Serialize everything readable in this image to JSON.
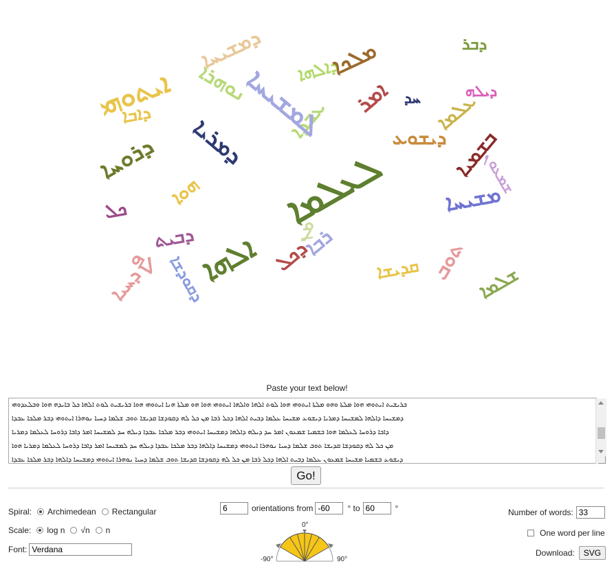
{
  "cloud": {
    "words": [
      {
        "text": "ܐܝܬܘܗܝ",
        "color": "#e8c44a"
      },
      {
        "text": "ܕܡܫܝܚܐ",
        "color": "#e8c89a"
      },
      {
        "text": "ܕܐܠܗܐ",
        "color": "#b2d96b"
      },
      {
        "text": "ܕܒܪ",
        "color": "#7a9a3d"
      },
      {
        "text": "ܡܠܟܐ",
        "color": "#9c6a2c"
      },
      {
        "text": "ܥܒܕܐ",
        "color": "#b8d97a"
      },
      {
        "text": "ܕܝܠܗ",
        "color": "#d95fb8"
      },
      {
        "text": "ܚܕ",
        "color": "#2f3a73"
      },
      {
        "text": "ܠܡܫܝܚܐ",
        "color": "#a3a7e0"
      },
      {
        "text": "ܐܡܪ",
        "color": "#b34b4b"
      },
      {
        "text": "ܕܐܒܐ",
        "color": "#e8c44a"
      },
      {
        "text": "ܕܪܘܚܐ",
        "color": "#6e7a2c"
      },
      {
        "text": "ܠܥܠܡܐ",
        "color": "#5e7f2f"
      },
      {
        "text": "ܕܡܪܝܐ",
        "color": "#2f3a73"
      },
      {
        "text": "ܗܘܐ",
        "color": "#e8c44a"
      },
      {
        "text": "ܕܝܫܘܥ",
        "color": "#c88a3d"
      },
      {
        "text": "ܒܫܡܝܐ",
        "color": "#8b2a2a"
      },
      {
        "text": "ܡܫܝܚܐ",
        "color": "#6f73d1"
      },
      {
        "text": "ܫܡܥܘܢ",
        "color": "#c9a0d8"
      },
      {
        "text": "ܥܠܡܐ",
        "color": "#c9b44a"
      },
      {
        "text": "ܕܒܝܬ",
        "color": "#a05a96"
      },
      {
        "text": "ܐܠܗܐ",
        "color": "#5f7f2f"
      },
      {
        "text": "ܕܟܠ",
        "color": "#b34b4b"
      },
      {
        "text": "ܪܒܐ",
        "color": "#a3a7e0"
      },
      {
        "text": "ܡܢ",
        "color": "#cddb9f"
      },
      {
        "text": "ܟܠ",
        "color": "#9d4b8a"
      },
      {
        "text": "ܠܗ",
        "color": "#e69a9a"
      },
      {
        "text": "ܕܩܘܕܫܐ",
        "color": "#8a9cde"
      },
      {
        "text": "ܩܕܝܫܐ",
        "color": "#e8c44a"
      },
      {
        "text": "ܬܘܒ",
        "color": "#e69a9a"
      },
      {
        "text": "ܫܠܡܐ",
        "color": "#8aa84f"
      },
      {
        "text": "ܕܚܝܐ",
        "color": "#e69a9a"
      },
      {
        "text": "ܢܘܗܪܐ",
        "color": "#b8d97a"
      }
    ]
  },
  "prompt": "Paste your text below!",
  "text_area": {
    "lines": [
      "ܒܪܝܫܝܬ ܐܝܬܘܗܝ ܗܘܐ ܡܠܬܐ ܘܗܘ ܡܠܬܐ ܐܝܬܘܗܝ ܗܘܐ ܠܘܬ ܐܠܗܐ ܘܐܠܗܐ ܐܝܬܘܗܝ ܗܘܐ ܗܘ ܡܠܬܐ ܗܢܐ ܐܝܬܘܗܝ ܗܘܐ ܒܪܝܫܝܬ ܠܘܬ ܐܠܗܐ ܟܠ ܒܐܝܕܗ ܗܘܐ ܘܒܠܥܕܘܗܝ",
      "ܕܡܫܝܚܐ ܕܐܠܗܐ ܠܡܫܝܚܐ ܕܡܪܝܐ ܕܝܫܘܥ ܡܫܝܚܐ ܥܠܡܐ ܕܒܝܬ ܐܠܗܐ ܕܟܠ ܪܒܐ ܡܢ ܟܠ ܠܗ ܕܩܘܕܫܐ ܩܕܝܫܐ ܬܘܒ ܫܠܡܐ ܕܚܝܐ ܢܘܗܪܐ ܐܝܬܘܗܝ ܕܒܪ ܡܠܟܐ ܥܒܕܐ",
      "ܕܐܒܐ ܕܪܘܚܐ ܠܥܠܡܐ ܗܘܐ ܒܫܡܝܐ ܫܡܥܘܢ ܐܡܪ ܚܕ ܕܝܠܗ ܕܐܠܗܐ ܕܡܫܝܚܐ ܐܝܬܘܗܝ ܕܒܪ ܡܠܟܐ ܥܒܕܐ ܕܝܠܗ ܚܕ ܠܡܫܝܚܐ ܐܡܪ ܕܐܒܐ ܕܪܘܚܐ ܠܥܠܡܐ ܕܡܪܝܐ",
      "ܡܢ ܟܠ ܠܗ ܕܩܘܕܫܐ ܩܕܝܫܐ ܬܘܒ ܫܠܡܐ ܕܚܝܐ ܢܘܗܪܐ ܐܝܬܘܗܝ ܕܡܫܝܚܐ ܕܐܠܗܐ ܕܒܪ ܡܠܟܐ ܥܒܕܐ ܕܝܠܗ ܚܕ ܠܡܫܝܚܐ ܐܡܪ ܕܐܒܐ ܕܪܘܚܐ ܠܥܠܡܐ ܕܡܪܝܐ ܗܘܐ",
      "ܕܝܫܘܥ ܒܫܡܝܐ ܡܫܝܚܐ ܫܡܥܘܢ ܥܠܡܐ ܕܒܝܬ ܐܠܗܐ ܕܟܠ ܪܒܐ ܡܢ ܟܠ ܠܗ ܕܩܘܕܫܐ ܩܕܝܫܐ ܬܘܒ ܫܠܡܐ ܕܚܝܐ ܢܘܗܪܐ ܐܝܬܘܗܝ ܕܡܫܝܚܐ ܕܐܠܗܐ ܕܒܪ ܡܠܟܐ ܥܒܕܐ"
    ]
  },
  "go_button": "Go!",
  "spiral": {
    "label": "Spiral:",
    "options": [
      "Archimedean",
      "Rectangular"
    ],
    "selected": "Archimedean"
  },
  "scale": {
    "label": "Scale:",
    "options": [
      "log n",
      "√n",
      "n"
    ],
    "selected": "log n"
  },
  "font": {
    "label": "Font:",
    "value": "Verdana"
  },
  "orientations": {
    "count": "6",
    "from_label": "orientations from",
    "from": "-60",
    "deg_to": "° to",
    "to": "60",
    "deg": "°"
  },
  "dial": {
    "top": "0°",
    "left": "-90°",
    "right": "90°"
  },
  "num_words": {
    "label": "Number of words:",
    "value": "33"
  },
  "one_word": {
    "label": "One word per line",
    "checked": false
  },
  "download": {
    "label": "Download:",
    "button": "SVG"
  }
}
